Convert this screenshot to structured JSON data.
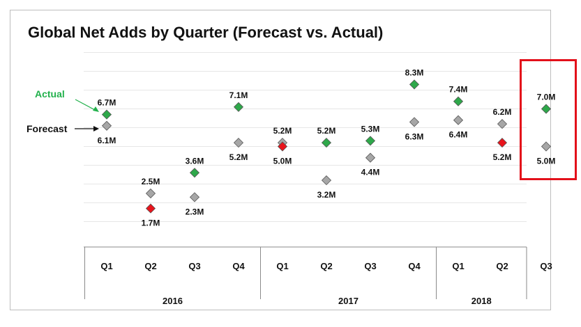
{
  "chart_data": {
    "type": "scatter",
    "title": "Global Net Adds by Quarter (Forecast vs. Actual)",
    "categories": [
      "Q1",
      "Q2",
      "Q3",
      "Q4",
      "Q1",
      "Q2",
      "Q3",
      "Q4",
      "Q1",
      "Q2",
      "Q3"
    ],
    "years": [
      {
        "label": "2016",
        "quarters": 4
      },
      {
        "label": "2017",
        "quarters": 4
      },
      {
        "label": "2018",
        "quarters": 3
      }
    ],
    "series": [
      {
        "name": "Actual",
        "values": [
          6.7,
          1.7,
          3.6,
          7.1,
          5.0,
          5.2,
          5.3,
          8.3,
          7.4,
          5.2,
          7.0
        ],
        "labels": [
          "6.7M",
          "1.7M",
          "3.6M",
          "7.1M",
          "5.0M",
          "5.2M",
          "5.3M",
          "8.3M",
          "7.4M",
          "5.2M",
          "7.0M"
        ]
      },
      {
        "name": "Forecast",
        "values": [
          6.1,
          2.5,
          2.3,
          5.2,
          5.2,
          3.2,
          4.4,
          6.3,
          6.4,
          6.2,
          5.0
        ],
        "labels": [
          "6.1M",
          "2.5M",
          "2.3M",
          "5.2M",
          "5.2M",
          "3.2M",
          "4.4M",
          "6.3M",
          "6.4M",
          "6.2M",
          "5.0M"
        ]
      }
    ],
    "ylim": [
      0,
      10
    ],
    "grid": true,
    "annotations": [
      {
        "text": "Actual",
        "target": "Actual",
        "color": "#22b14c"
      },
      {
        "text": "Forecast",
        "target": "Forecast",
        "color": "#111111"
      }
    ],
    "highlight": {
      "category_index": 10,
      "color": "#e3101a"
    },
    "colors": {
      "actual_beat": "#2ea84a",
      "actual_miss": "#e8141c",
      "forecast": "#a6a6a6",
      "marker_stroke": "#555555",
      "grid": "#e6e6e6"
    }
  }
}
